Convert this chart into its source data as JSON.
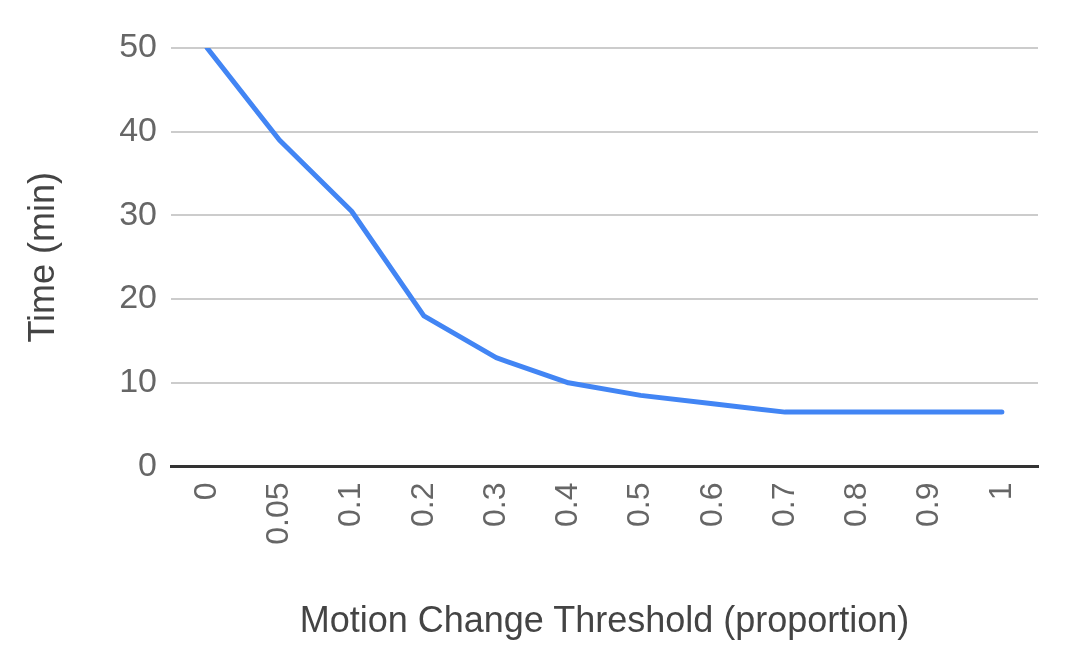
{
  "chart_data": {
    "type": "line",
    "xlabel": "Motion Change Threshold (proportion)",
    "ylabel": "Time (min)",
    "categories": [
      "0",
      "0.05",
      "0.1",
      "0.2",
      "0.3",
      "0.4",
      "0.5",
      "0.6",
      "0.7",
      "0.8",
      "0.9",
      "1"
    ],
    "series": [
      {
        "color": "#4285f4",
        "values": [
          50,
          39,
          30.5,
          18,
          13,
          10,
          8.5,
          7.5,
          6.5,
          6.5,
          6.5,
          6.5
        ]
      }
    ],
    "ylim": [
      0,
      50
    ],
    "yticks": [
      0,
      10,
      20,
      30,
      40,
      50
    ],
    "grid": "y",
    "legend": false
  }
}
